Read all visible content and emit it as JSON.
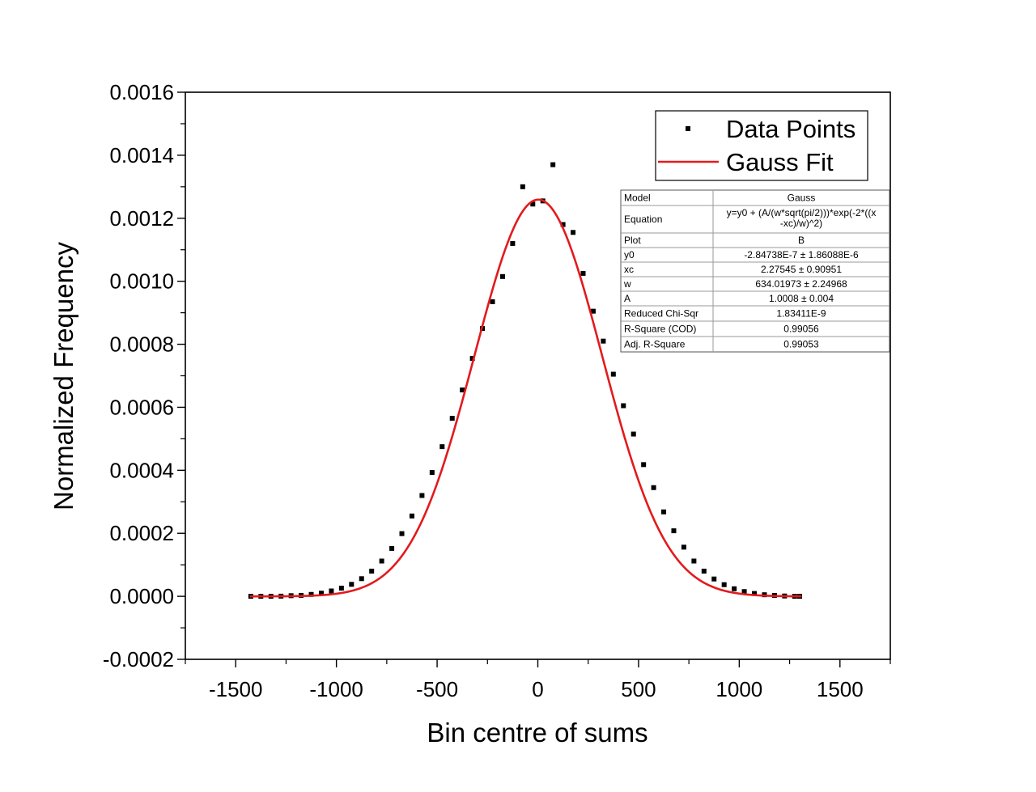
{
  "chart_data": {
    "type": "scatter",
    "xlabel": "Bin centre of sums",
    "ylabel": "Normalized Frequency",
    "xlim": [
      -1750,
      1750
    ],
    "ylim": [
      -0.0002,
      0.0016
    ],
    "x_ticks": [
      -1500,
      -1000,
      -500,
      0,
      500,
      1000,
      1500
    ],
    "x_tick_labels": [
      "-1500",
      "-1000",
      "-500",
      "0",
      "500",
      "1000",
      "1500"
    ],
    "y_ticks": [
      -0.0002,
      0,
      0.0002,
      0.0004,
      0.0006,
      0.0008,
      0.001,
      0.0012,
      0.0014,
      0.0016
    ],
    "y_tick_labels": [
      "-0.0002",
      "0.0000",
      "0.0002",
      "0.0004",
      "0.0006",
      "0.0008",
      "0.0010",
      "0.0012",
      "0.0014",
      "0.0016"
    ],
    "grid": false,
    "legend_position": "top-right",
    "series": [
      {
        "name": "Data Points",
        "kind": "scatter",
        "color": "#000000",
        "marker": "square",
        "x": [
          -1425,
          -1375,
          -1325,
          -1275,
          -1225,
          -1175,
          -1125,
          -1075,
          -1025,
          -975,
          -925,
          -875,
          -825,
          -775,
          -725,
          -675,
          -625,
          -575,
          -525,
          -475,
          -425,
          -375,
          -325,
          -275,
          -225,
          -175,
          -125,
          -75,
          -25,
          25,
          75,
          125,
          175,
          225,
          275,
          325,
          375,
          425,
          475,
          525,
          575,
          625,
          675,
          725,
          775,
          825,
          875,
          925,
          975,
          1025,
          1075,
          1125,
          1175,
          1225,
          1275,
          1300
        ],
        "y": [
          0.0,
          0.0,
          0.0,
          5e-07,
          2e-06,
          3e-06,
          6e-06,
          1e-05,
          1.7e-05,
          2.6e-05,
          3.8e-05,
          5.6e-05,
          8e-05,
          0.000112,
          0.000152,
          0.000199,
          0.000255,
          0.00032,
          0.000393,
          0.000475,
          0.000565,
          0.000655,
          0.000755,
          0.00085,
          0.000935,
          0.001015,
          0.00112,
          0.0013,
          0.001245,
          0.001255,
          0.00137,
          0.00118,
          0.001155,
          0.001025,
          0.000905,
          0.00081,
          0.000705,
          0.000605,
          0.000515,
          0.000418,
          0.000345,
          0.000268,
          0.000208,
          0.000156,
          0.000112,
          8e-05,
          5.5e-05,
          3.7e-05,
          2.4e-05,
          1.5e-05,
          9e-06,
          5e-06,
          3e-06,
          1e-06,
          0.0,
          0.0
        ]
      },
      {
        "name": "Gauss Fit",
        "kind": "line",
        "color": "#e31a1c",
        "model": "gauss",
        "params": {
          "y0": -2.84738e-07,
          "xc": 2.27545,
          "w": 634.01973,
          "A": 1.0008
        },
        "x_range": [
          -1430,
          1310
        ]
      }
    ],
    "stats_table": {
      "rows": [
        [
          "Model",
          "Gauss"
        ],
        [
          "Equation",
          "y=y0 + (A/(w*sqrt(pi/2)))*exp(-2*((x-xc)/w)^2)"
        ],
        [
          "Plot",
          "B"
        ],
        [
          "y0",
          "-2.84738E-7 ± 1.86088E-6"
        ],
        [
          "xc",
          "2.27545 ± 0.90951"
        ],
        [
          "w",
          "634.01973 ± 2.24968"
        ],
        [
          "A",
          "1.0008 ± 0.004"
        ],
        [
          "Reduced Chi-Sqr",
          "1.83411E-9"
        ],
        [
          "R-Square (COD)",
          "0.99056"
        ],
        [
          "Adj. R-Square",
          "0.99053"
        ]
      ],
      "equation_lines": [
        "y=y0 + (A/(w*sqrt(pi/2)))*exp(-2*((x",
        "-xc)/w)^2)"
      ]
    }
  }
}
